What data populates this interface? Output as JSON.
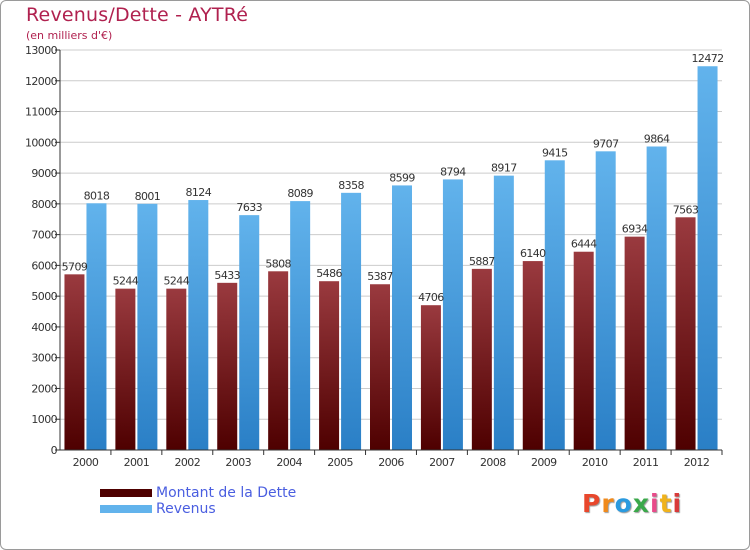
{
  "title": "Revenus/Dette - AYTRé",
  "subtitle": "(en milliers d'€)",
  "legend": {
    "dette_label": "Montant de la Dette",
    "revenus_label": "Revenus"
  },
  "logo": {
    "text": "Proxiti",
    "letter_colors": [
      "#e8472c",
      "#f08a1c",
      "#2a9adf",
      "#3aa84a",
      "#e84b8a",
      "#f0b31c",
      "#d83a3a"
    ]
  },
  "colors": {
    "dette_dark": "#4e0000",
    "dette_light": "#9a3a3f",
    "revenus_dark": "#2a7fc6",
    "revenus_light": "#62b3ec",
    "axis": "#333333",
    "grid": "#cccccc",
    "text": "#333333"
  },
  "chart_data": {
    "type": "bar",
    "title": "Revenus/Dette - AYTRé",
    "ylabel": "(en milliers d'€)",
    "xlabel": "",
    "categories": [
      "2000",
      "2001",
      "2002",
      "2003",
      "2004",
      "2005",
      "2006",
      "2007",
      "2008",
      "2009",
      "2010",
      "2011",
      "2012"
    ],
    "series": [
      {
        "name": "Montant de la Dette",
        "values": [
          5709,
          5244,
          5244,
          5433,
          5808,
          5486,
          5387,
          4706,
          5887,
          6140,
          6444,
          6934,
          7563
        ],
        "labels": [
          "5709",
          "5244",
          "5244",
          "5433",
          "5808",
          "5486",
          "5387",
          "4706",
          "5887",
          "6140",
          "6444",
          "6934",
          "7563"
        ]
      },
      {
        "name": "Revenus",
        "values": [
          8018,
          8001,
          8124,
          7633,
          8089,
          8358,
          8599,
          8794,
          8917,
          9415,
          9707,
          9864,
          12472
        ],
        "labels": [
          "8018",
          "8001",
          "8124",
          "7633",
          "8089",
          "8358",
          "8599",
          "8794",
          "8917",
          "9415",
          "9707",
          "9864",
          "12472"
        ]
      }
    ],
    "ylim": [
      0,
      13000
    ],
    "yticks": [
      0,
      1000,
      2000,
      3000,
      4000,
      5000,
      6000,
      7000,
      8000,
      9000,
      10000,
      11000,
      12000,
      13000
    ],
    "ytick_labels": [
      "0",
      "1000",
      "2000",
      "3000",
      "4000",
      "5000",
      "6000",
      "7000",
      "8000",
      "9000",
      "10000",
      "11000",
      "12000",
      "13000"
    ],
    "grid": true,
    "legend_position": "bottom-left"
  }
}
